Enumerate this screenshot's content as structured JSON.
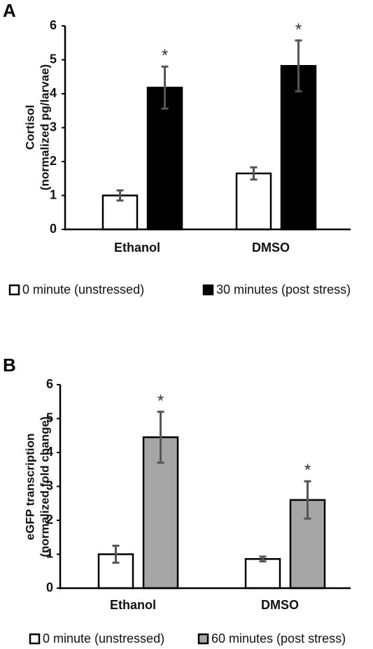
{
  "chart_data": [
    {
      "type": "bar",
      "panel_label": "A",
      "title": "",
      "ylabel_lines": [
        "Cortisol",
        "(normalized pg/larvae)"
      ],
      "xlabel": "",
      "categories": [
        "Ethanol",
        "DMSO"
      ],
      "ylim": [
        0,
        6
      ],
      "yticks": [
        0,
        1,
        2,
        3,
        4,
        5,
        6
      ],
      "grid": false,
      "legend_position": "bottom",
      "series": [
        {
          "name": "0 minute (unstressed)",
          "color": "#ffffff",
          "values": [
            1.0,
            1.65
          ],
          "errors": [
            0.15,
            0.18
          ]
        },
        {
          "name": "30 minutes (post stress)",
          "color": "#000000",
          "values": [
            4.18,
            4.82
          ],
          "errors": [
            0.62,
            0.75
          ]
        }
      ],
      "annotations": [
        {
          "text": "*",
          "category": "Ethanol",
          "series": 1
        },
        {
          "text": "*",
          "category": "DMSO",
          "series": 1
        }
      ]
    },
    {
      "type": "bar",
      "panel_label": "B",
      "title": "",
      "ylabel_lines": [
        "eGFP transcription",
        "(normalized fold change)"
      ],
      "xlabel": "",
      "categories": [
        "Ethanol",
        "DMSO"
      ],
      "ylim": [
        0,
        6
      ],
      "yticks": [
        0,
        1,
        2,
        3,
        4,
        5,
        6
      ],
      "grid": false,
      "legend_position": "bottom",
      "series": [
        {
          "name": "0 minute (unstressed)",
          "color": "#ffffff",
          "values": [
            1.0,
            0.86
          ],
          "errors": [
            0.25,
            0.07
          ]
        },
        {
          "name": "60 minutes (post stress)",
          "color": "#a6a6a6",
          "values": [
            4.45,
            2.6
          ],
          "errors": [
            0.75,
            0.55
          ]
        }
      ],
      "annotations": [
        {
          "text": "*",
          "category": "Ethanol",
          "series": 1
        },
        {
          "text": "*",
          "category": "DMSO",
          "series": 1
        }
      ]
    }
  ]
}
